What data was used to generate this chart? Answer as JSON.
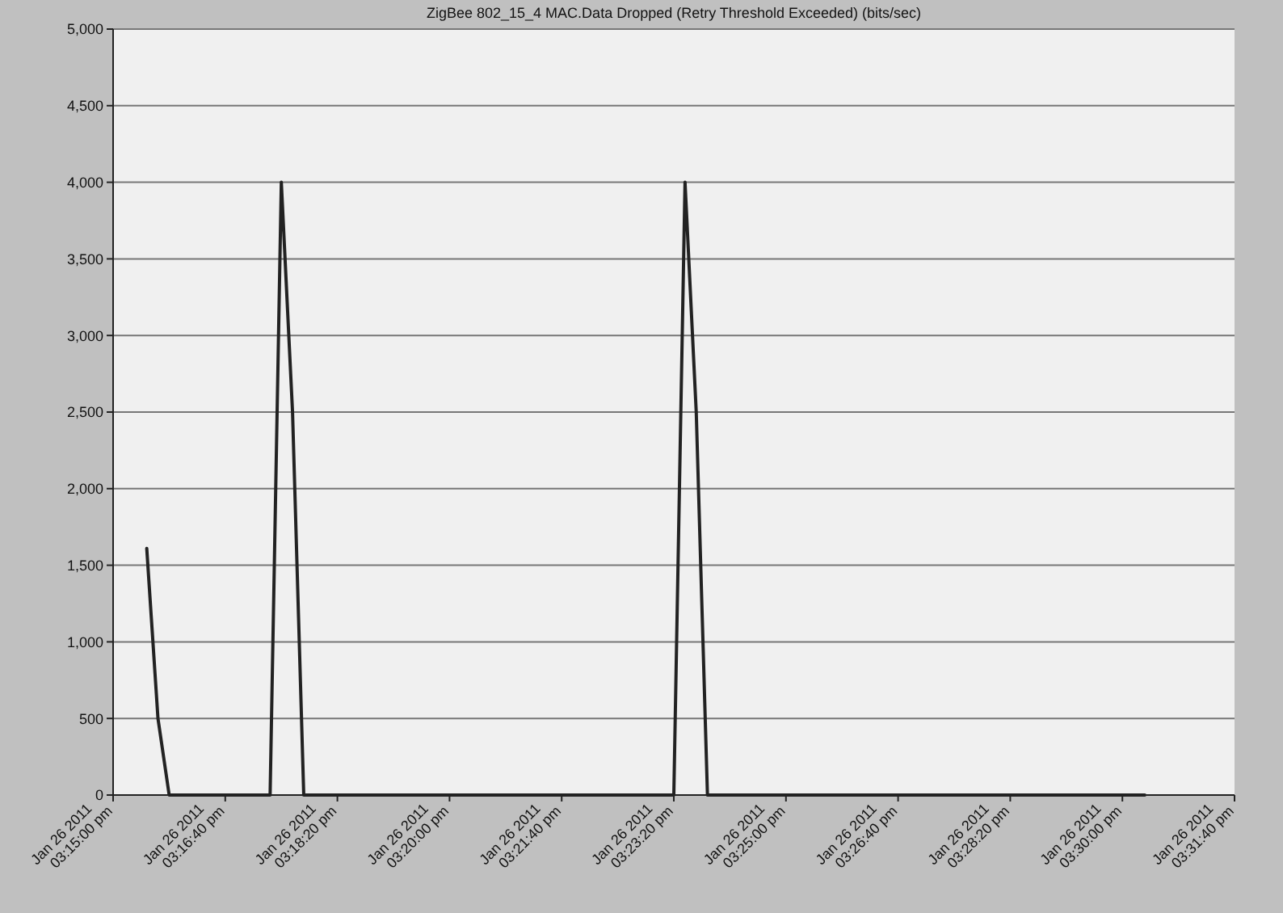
{
  "chart_data": {
    "type": "line",
    "title": "ZigBee 802_15_4 MAC.Data Dropped (Retry Threshold Exceeded) (bits/sec)",
    "categories": [
      "Jan 26 2011\n03:15:00 pm",
      null,
      null,
      null,
      null,
      null,
      null,
      null,
      null,
      null,
      "Jan 26 2011\n03:16:40 pm",
      null,
      null,
      null,
      null,
      null,
      null,
      null,
      null,
      null,
      "Jan 26 2011\n03:18:20 pm",
      null,
      null,
      null,
      null,
      null,
      null,
      null,
      null,
      null,
      "Jan 26 2011\n03:20:00 pm",
      null,
      null,
      null,
      null,
      null,
      null,
      null,
      null,
      null,
      "Jan 26 2011\n03:21:40 pm",
      null,
      null,
      null,
      null,
      null,
      null,
      null,
      null,
      null,
      "Jan 26 2011\n03:23:20 pm",
      null,
      null,
      null,
      null,
      null,
      null,
      null,
      null,
      null,
      "Jan 26 2011\n03:25:00 pm",
      null,
      null,
      null,
      null,
      null,
      null,
      null,
      null,
      null,
      "Jan 26 2011\n03:26:40 pm",
      null,
      null,
      null,
      null,
      null,
      null,
      null,
      null,
      null,
      "Jan 26 2011\n03:28:20 pm",
      null,
      null,
      null,
      null,
      null,
      null,
      null,
      null,
      null,
      "Jan 26 2011\n03:30:00 pm",
      null,
      null,
      null,
      null,
      null,
      null,
      null,
      null,
      null,
      "Jan 26 2011\n03:31:40 pm"
    ],
    "series": [
      {
        "color": "#222222",
        "values": [
          null,
          null,
          null,
          1610,
          500,
          0,
          0,
          0,
          0,
          0,
          0,
          0,
          0,
          0,
          0,
          4000,
          2500,
          0,
          0,
          0,
          0,
          0,
          0,
          0,
          0,
          0,
          0,
          0,
          0,
          0,
          0,
          0,
          0,
          0,
          0,
          0,
          0,
          0,
          0,
          0,
          0,
          0,
          0,
          0,
          0,
          0,
          0,
          0,
          0,
          0,
          0,
          4000,
          2500,
          0,
          0,
          0,
          0,
          0,
          0,
          0,
          0,
          0,
          0,
          0,
          0,
          0,
          0,
          0,
          0,
          0,
          0,
          0,
          0,
          0,
          0,
          0,
          0,
          0,
          0,
          0,
          0,
          0,
          0,
          0,
          0,
          0,
          0,
          0,
          0,
          0,
          0,
          0,
          0,
          null,
          null,
          null,
          null,
          null,
          null,
          null,
          null
        ]
      }
    ],
    "ylim": [
      0,
      5000
    ],
    "yticks": [
      {
        "value": 0,
        "label": "0"
      },
      {
        "value": 500,
        "label": "500"
      },
      {
        "value": 1000,
        "label": "1,000"
      },
      {
        "value": 1500,
        "label": "1,500"
      },
      {
        "value": 2000,
        "label": "2,000"
      },
      {
        "value": 2500,
        "label": "2,500"
      },
      {
        "value": 3000,
        "label": "3,000"
      },
      {
        "value": 3500,
        "label": "3,500"
      },
      {
        "value": 4000,
        "label": "4,000"
      },
      {
        "value": 4500,
        "label": "4,500"
      },
      {
        "value": 5000,
        "label": "5,000"
      }
    ],
    "grid": "y",
    "marker": "none",
    "line_style": "solid"
  }
}
